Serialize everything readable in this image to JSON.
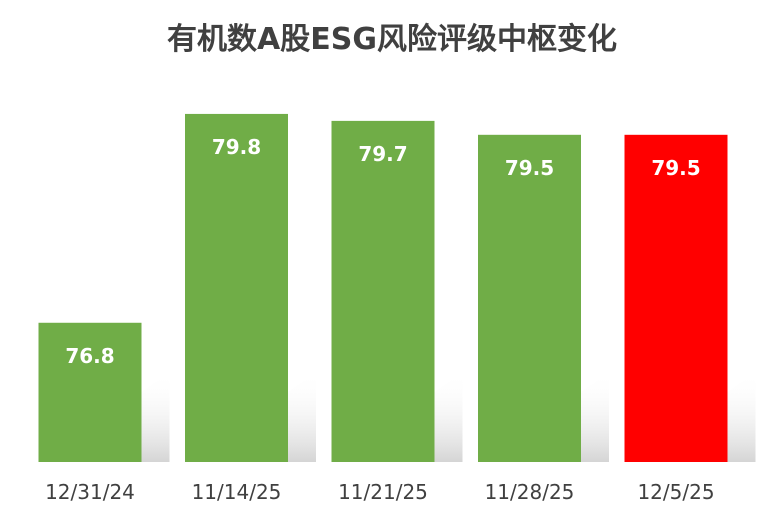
{
  "chart_data": {
    "type": "bar",
    "title": "有机数A股ESG风险评级中枢变化",
    "categories": [
      "12/31/24",
      "11/14/25",
      "11/21/25",
      "11/28/25",
      "12/5/25"
    ],
    "values": [
      76.8,
      79.8,
      79.7,
      79.5,
      79.5
    ],
    "data_labels": [
      "76.8",
      "79.8",
      "79.7",
      "79.5",
      "79.5"
    ],
    "bar_colors": [
      "#70AD47",
      "#70AD47",
      "#70AD47",
      "#70AD47",
      "#FF0000"
    ],
    "ylim": [
      74.8,
      80.0
    ],
    "grid": false,
    "legend": "none"
  }
}
